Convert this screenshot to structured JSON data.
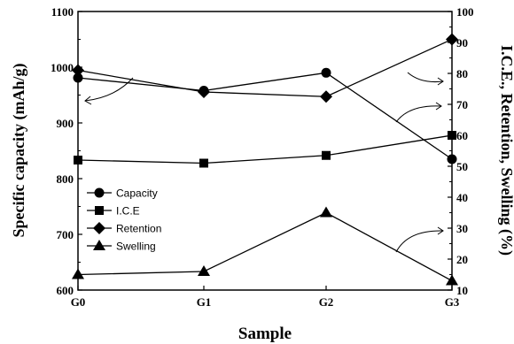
{
  "chart_data": {
    "type": "line",
    "categories": [
      "G0",
      "G1",
      "G2",
      "G3"
    ],
    "xlabel": "Sample",
    "ylabel_left": "Specific capacity (mAh/g)",
    "ylabel_right": "I.C.E., Retention, Swelling (%)",
    "ylim_left": [
      600,
      1100
    ],
    "ylim_right": [
      10,
      100
    ],
    "left_ticks": [
      "600",
      "700",
      "800",
      "900",
      "1000",
      "1100"
    ],
    "right_ticks": [
      "10",
      "20",
      "30",
      "40",
      "50",
      "60",
      "70",
      "80",
      "90",
      "100"
    ],
    "grid": false,
    "legend_position": "lower-left",
    "series": [
      {
        "name": "Capacity",
        "axis": "left",
        "marker": "circle",
        "values": [
          981,
          958,
          990,
          835
        ]
      },
      {
        "name": "I.C.E",
        "axis": "right",
        "marker": "square",
        "values": [
          52,
          51,
          53.5,
          60
        ]
      },
      {
        "name": "Retention",
        "axis": "right",
        "marker": "diamond",
        "values": [
          81,
          74,
          72.5,
          91
        ]
      },
      {
        "name": "Swelling",
        "axis": "right",
        "marker": "triangle",
        "values": [
          15,
          16,
          35,
          13
        ]
      }
    ]
  }
}
